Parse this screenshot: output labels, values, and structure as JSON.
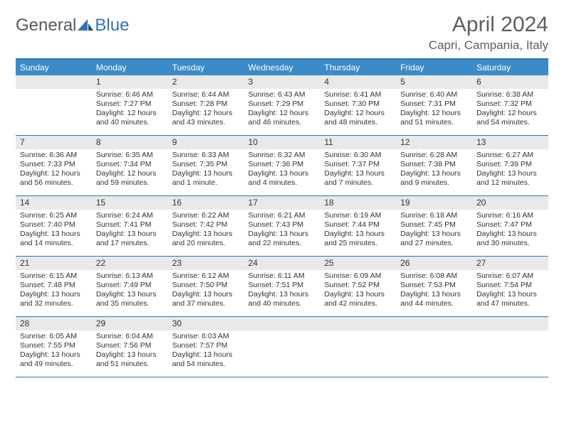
{
  "logo": {
    "text1": "General",
    "text2": "Blue"
  },
  "title": "April 2024",
  "location": "Capri, Campania, Italy",
  "colors": {
    "brand_blue": "#3b8bc9",
    "border_blue": "#2e75b6",
    "daynum_bg": "#e9e9e9",
    "text": "#333333",
    "header_text": "#5a5f64"
  },
  "day_headers": [
    "Sunday",
    "Monday",
    "Tuesday",
    "Wednesday",
    "Thursday",
    "Friday",
    "Saturday"
  ],
  "weeks": [
    [
      {
        "n": "",
        "sr": "",
        "ss": "",
        "dl": ""
      },
      {
        "n": "1",
        "sr": "Sunrise: 6:46 AM",
        "ss": "Sunset: 7:27 PM",
        "dl": "Daylight: 12 hours and 40 minutes."
      },
      {
        "n": "2",
        "sr": "Sunrise: 6:44 AM",
        "ss": "Sunset: 7:28 PM",
        "dl": "Daylight: 12 hours and 43 minutes."
      },
      {
        "n": "3",
        "sr": "Sunrise: 6:43 AM",
        "ss": "Sunset: 7:29 PM",
        "dl": "Daylight: 12 hours and 46 minutes."
      },
      {
        "n": "4",
        "sr": "Sunrise: 6:41 AM",
        "ss": "Sunset: 7:30 PM",
        "dl": "Daylight: 12 hours and 48 minutes."
      },
      {
        "n": "5",
        "sr": "Sunrise: 6:40 AM",
        "ss": "Sunset: 7:31 PM",
        "dl": "Daylight: 12 hours and 51 minutes."
      },
      {
        "n": "6",
        "sr": "Sunrise: 6:38 AM",
        "ss": "Sunset: 7:32 PM",
        "dl": "Daylight: 12 hours and 54 minutes."
      }
    ],
    [
      {
        "n": "7",
        "sr": "Sunrise: 6:36 AM",
        "ss": "Sunset: 7:33 PM",
        "dl": "Daylight: 12 hours and 56 minutes."
      },
      {
        "n": "8",
        "sr": "Sunrise: 6:35 AM",
        "ss": "Sunset: 7:34 PM",
        "dl": "Daylight: 12 hours and 59 minutes."
      },
      {
        "n": "9",
        "sr": "Sunrise: 6:33 AM",
        "ss": "Sunset: 7:35 PM",
        "dl": "Daylight: 13 hours and 1 minute."
      },
      {
        "n": "10",
        "sr": "Sunrise: 6:32 AM",
        "ss": "Sunset: 7:36 PM",
        "dl": "Daylight: 13 hours and 4 minutes."
      },
      {
        "n": "11",
        "sr": "Sunrise: 6:30 AM",
        "ss": "Sunset: 7:37 PM",
        "dl": "Daylight: 13 hours and 7 minutes."
      },
      {
        "n": "12",
        "sr": "Sunrise: 6:28 AM",
        "ss": "Sunset: 7:38 PM",
        "dl": "Daylight: 13 hours and 9 minutes."
      },
      {
        "n": "13",
        "sr": "Sunrise: 6:27 AM",
        "ss": "Sunset: 7:39 PM",
        "dl": "Daylight: 13 hours and 12 minutes."
      }
    ],
    [
      {
        "n": "14",
        "sr": "Sunrise: 6:25 AM",
        "ss": "Sunset: 7:40 PM",
        "dl": "Daylight: 13 hours and 14 minutes."
      },
      {
        "n": "15",
        "sr": "Sunrise: 6:24 AM",
        "ss": "Sunset: 7:41 PM",
        "dl": "Daylight: 13 hours and 17 minutes."
      },
      {
        "n": "16",
        "sr": "Sunrise: 6:22 AM",
        "ss": "Sunset: 7:42 PM",
        "dl": "Daylight: 13 hours and 20 minutes."
      },
      {
        "n": "17",
        "sr": "Sunrise: 6:21 AM",
        "ss": "Sunset: 7:43 PM",
        "dl": "Daylight: 13 hours and 22 minutes."
      },
      {
        "n": "18",
        "sr": "Sunrise: 6:19 AM",
        "ss": "Sunset: 7:44 PM",
        "dl": "Daylight: 13 hours and 25 minutes."
      },
      {
        "n": "19",
        "sr": "Sunrise: 6:18 AM",
        "ss": "Sunset: 7:45 PM",
        "dl": "Daylight: 13 hours and 27 minutes."
      },
      {
        "n": "20",
        "sr": "Sunrise: 6:16 AM",
        "ss": "Sunset: 7:47 PM",
        "dl": "Daylight: 13 hours and 30 minutes."
      }
    ],
    [
      {
        "n": "21",
        "sr": "Sunrise: 6:15 AM",
        "ss": "Sunset: 7:48 PM",
        "dl": "Daylight: 13 hours and 32 minutes."
      },
      {
        "n": "22",
        "sr": "Sunrise: 6:13 AM",
        "ss": "Sunset: 7:49 PM",
        "dl": "Daylight: 13 hours and 35 minutes."
      },
      {
        "n": "23",
        "sr": "Sunrise: 6:12 AM",
        "ss": "Sunset: 7:50 PM",
        "dl": "Daylight: 13 hours and 37 minutes."
      },
      {
        "n": "24",
        "sr": "Sunrise: 6:11 AM",
        "ss": "Sunset: 7:51 PM",
        "dl": "Daylight: 13 hours and 40 minutes."
      },
      {
        "n": "25",
        "sr": "Sunrise: 6:09 AM",
        "ss": "Sunset: 7:52 PM",
        "dl": "Daylight: 13 hours and 42 minutes."
      },
      {
        "n": "26",
        "sr": "Sunrise: 6:08 AM",
        "ss": "Sunset: 7:53 PM",
        "dl": "Daylight: 13 hours and 44 minutes."
      },
      {
        "n": "27",
        "sr": "Sunrise: 6:07 AM",
        "ss": "Sunset: 7:54 PM",
        "dl": "Daylight: 13 hours and 47 minutes."
      }
    ],
    [
      {
        "n": "28",
        "sr": "Sunrise: 6:05 AM",
        "ss": "Sunset: 7:55 PM",
        "dl": "Daylight: 13 hours and 49 minutes."
      },
      {
        "n": "29",
        "sr": "Sunrise: 6:04 AM",
        "ss": "Sunset: 7:56 PM",
        "dl": "Daylight: 13 hours and 51 minutes."
      },
      {
        "n": "30",
        "sr": "Sunrise: 6:03 AM",
        "ss": "Sunset: 7:57 PM",
        "dl": "Daylight: 13 hours and 54 minutes."
      },
      {
        "n": "",
        "sr": "",
        "ss": "",
        "dl": ""
      },
      {
        "n": "",
        "sr": "",
        "ss": "",
        "dl": ""
      },
      {
        "n": "",
        "sr": "",
        "ss": "",
        "dl": ""
      },
      {
        "n": "",
        "sr": "",
        "ss": "",
        "dl": ""
      }
    ]
  ]
}
